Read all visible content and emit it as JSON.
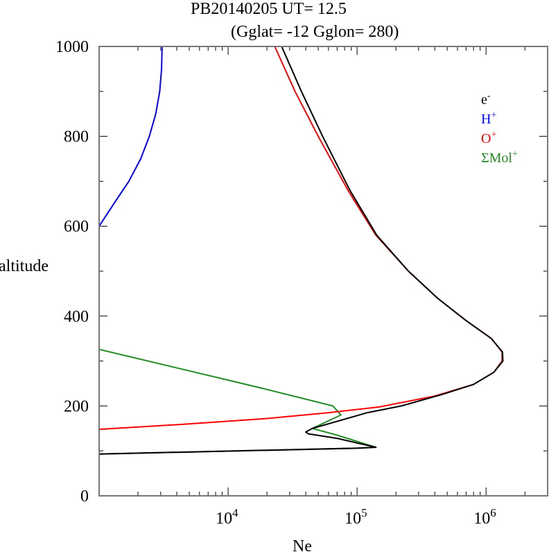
{
  "chart_data": {
    "type": "line",
    "title": "PB20140205   UT=  12.5",
    "subtitle": "(Gglat= -12   Gglon=  280)",
    "xlabel": "Ne",
    "ylabel": "altitude",
    "xscale": "log",
    "xlim": [
      1000,
      3000000
    ],
    "ylim": [
      0,
      1000
    ],
    "x_ticks": [
      {
        "base": "10",
        "exp": "4",
        "value": 10000
      },
      {
        "base": "10",
        "exp": "5",
        "value": 100000
      },
      {
        "base": "10",
        "exp": "6",
        "value": 1000000
      }
    ],
    "y_ticks": [
      "0",
      "200",
      "400",
      "600",
      "800",
      "1000"
    ],
    "legend_position": "top-right",
    "legend": [
      {
        "name": "e",
        "sup": "-",
        "color": "#000000"
      },
      {
        "name": "H",
        "sup": "+",
        "color": "#0000ff"
      },
      {
        "name": "O",
        "sup": "+",
        "color": "#ff0000"
      },
      {
        "name": "ΣMol",
        "sup": "+",
        "color": "#228b22"
      }
    ],
    "series": [
      {
        "name": "H+",
        "color": "#0000ff",
        "points": [
          [
            1000,
            600
          ],
          [
            1300,
            650
          ],
          [
            1700,
            700
          ],
          [
            2100,
            750
          ],
          [
            2450,
            800
          ],
          [
            2750,
            850
          ],
          [
            2950,
            900
          ],
          [
            3050,
            950
          ],
          [
            3080,
            1000
          ]
        ]
      },
      {
        "name": "ΣMol+",
        "color": "#228b22",
        "points": [
          [
            1000,
            93
          ],
          [
            100000,
            106
          ],
          [
            140000,
            108
          ],
          [
            70000,
            135
          ],
          [
            45000,
            150
          ],
          [
            75000,
            180
          ],
          [
            65000,
            200
          ],
          [
            18000,
            240
          ],
          [
            1000,
            326
          ]
        ]
      },
      {
        "name": "O+",
        "color": "#ff0000",
        "points": [
          [
            1000,
            148
          ],
          [
            5000,
            160
          ],
          [
            20000,
            172
          ],
          [
            60000,
            185
          ],
          [
            150000,
            198
          ],
          [
            400000,
            222
          ],
          [
            800000,
            248
          ],
          [
            1150000,
            275
          ],
          [
            1330000,
            300
          ],
          [
            1330000,
            320
          ],
          [
            1100000,
            350
          ],
          [
            700000,
            390
          ],
          [
            420000,
            440
          ],
          [
            250000,
            500
          ],
          [
            140000,
            580
          ],
          [
            85000,
            680
          ],
          [
            50000,
            800
          ],
          [
            33000,
            900
          ],
          [
            23000,
            1000
          ]
        ]
      },
      {
        "name": "e-",
        "color": "#000000",
        "points": [
          [
            1000,
            93
          ],
          [
            100000,
            106
          ],
          [
            140000,
            108
          ],
          [
            70000,
            128
          ],
          [
            42000,
            138
          ],
          [
            40000,
            142
          ],
          [
            45000,
            150
          ],
          [
            120000,
            185
          ],
          [
            220000,
            200
          ],
          [
            450000,
            225
          ],
          [
            800000,
            248
          ],
          [
            1150000,
            275
          ],
          [
            1350000,
            300
          ],
          [
            1340000,
            320
          ],
          [
            1100000,
            350
          ],
          [
            700000,
            390
          ],
          [
            420000,
            440
          ],
          [
            250000,
            500
          ],
          [
            142000,
            580
          ],
          [
            88000,
            680
          ],
          [
            54000,
            800
          ],
          [
            37000,
            900
          ],
          [
            26000,
            1000
          ]
        ]
      }
    ]
  }
}
